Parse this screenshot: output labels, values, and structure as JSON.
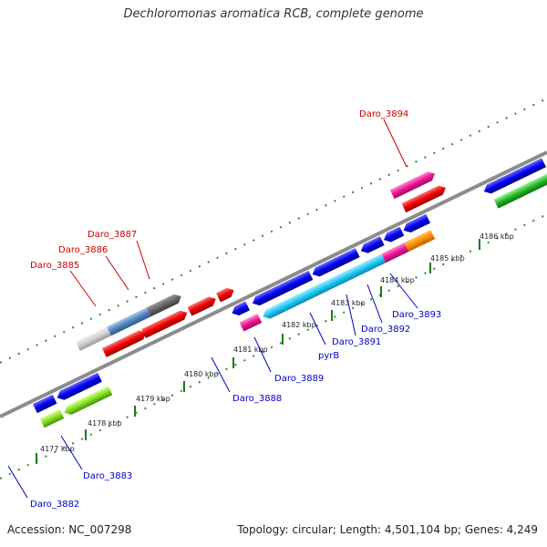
{
  "title": "Dechloromonas aromatica RCB, complete genome",
  "footer": {
    "accession": "Accession: NC_007298",
    "summary": "Topology: circular; Length: 4,501,104 bp; Genes: 4,249"
  },
  "colors": {
    "backbone": "#8c8c8c",
    "tick": "#2e8b2e",
    "label_forward": "#cc0000",
    "label_reverse": "#0000cc"
  },
  "scale_ticks": [
    "4177 kbp",
    "4178 kbp",
    "4179 kbp",
    "4180 kbp",
    "4181 kbp",
    "4182 kbp",
    "4183 kbp",
    "4184 kbp",
    "4185 kbp",
    "4186 kbp"
  ],
  "forward_labels": [
    "Daro_3885",
    "Daro_3886",
    "Daro_3887",
    "Daro_3894"
  ],
  "reverse_labels": [
    "Daro_3882",
    "Daro_3883",
    "Daro_3888",
    "Daro_3889",
    "pyrB",
    "Daro_3891",
    "Daro_3892",
    "Daro_3893"
  ]
}
